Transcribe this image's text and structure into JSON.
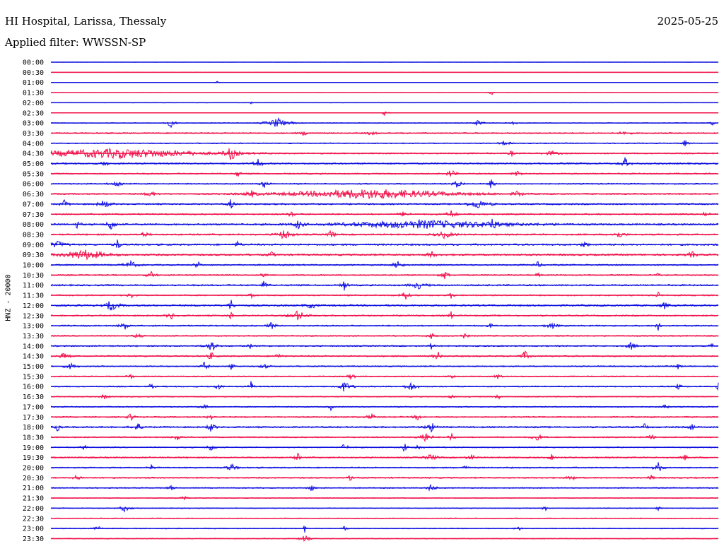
{
  "header": {
    "station": "HI Hospital, Larissa, Thessaly",
    "date": "2025-05-25",
    "filter": "Applied filter: WWSSN-SP"
  },
  "channel_label": "HNZ - 20000",
  "colors": {
    "even_hour": "#1010e0",
    "odd_half_hour": "#f0104a"
  },
  "chart_data": {
    "type": "line",
    "title": "HI Hospital, Larissa, Thessaly",
    "ylabel": "HNZ - 20000",
    "rows": [
      {
        "label": "00:00",
        "noise": 0.3,
        "events": []
      },
      {
        "label": "00:30",
        "noise": 0.4,
        "events": []
      },
      {
        "label": "01:00",
        "noise": 0.3,
        "events": [
          [
            0.25,
            2,
            3
          ]
        ]
      },
      {
        "label": "01:30",
        "noise": 0.3,
        "events": [
          [
            0.66,
            4,
            3
          ]
        ]
      },
      {
        "label": "02:00",
        "noise": 0.4,
        "events": [
          [
            0.3,
            2,
            2
          ]
        ]
      },
      {
        "label": "02:30",
        "noise": 0.4,
        "events": [
          [
            0.5,
            4,
            5
          ]
        ]
      },
      {
        "label": "03:00",
        "noise": 1.0,
        "events": [
          [
            0.18,
            6,
            6
          ],
          [
            0.34,
            7,
            15
          ],
          [
            0.64,
            5,
            6
          ],
          [
            0.69,
            4,
            5
          ],
          [
            0.99,
            5,
            3
          ]
        ]
      },
      {
        "label": "03:30",
        "noise": 1.5,
        "events": [
          [
            0.38,
            3,
            8
          ],
          [
            0.48,
            3,
            6
          ],
          [
            0.86,
            4,
            6
          ]
        ]
      },
      {
        "label": "04:00",
        "noise": 1.2,
        "events": [
          [
            0.68,
            4,
            6
          ],
          [
            0.95,
            5,
            4
          ]
        ]
      },
      {
        "label": "04:30",
        "noise": 1.5,
        "events": [
          [
            0.1,
            5,
            120
          ],
          [
            0.27,
            9,
            8
          ],
          [
            0.69,
            5,
            3
          ],
          [
            0.75,
            3,
            10
          ]
        ]
      },
      {
        "label": "05:00",
        "noise": 1.8,
        "events": [
          [
            0.08,
            5,
            4
          ],
          [
            0.31,
            9,
            5
          ],
          [
            0.86,
            8,
            6
          ]
        ]
      },
      {
        "label": "05:30",
        "noise": 1.5,
        "events": [
          [
            0.28,
            4,
            4
          ],
          [
            0.6,
            7,
            5
          ],
          [
            0.7,
            5,
            6
          ]
        ]
      },
      {
        "label": "06:00",
        "noise": 1.4,
        "events": [
          [
            0.1,
            4,
            10
          ],
          [
            0.32,
            5,
            6
          ],
          [
            0.61,
            7,
            6
          ],
          [
            0.66,
            7,
            4
          ]
        ]
      },
      {
        "label": "06:30",
        "noise": 1.6,
        "events": [
          [
            0.15,
            4,
            8
          ],
          [
            0.3,
            5,
            6
          ],
          [
            0.48,
            5,
            120
          ],
          [
            0.7,
            4,
            6
          ]
        ]
      },
      {
        "label": "07:00",
        "noise": 1.8,
        "events": [
          [
            0.02,
            5,
            6
          ],
          [
            0.08,
            6,
            8
          ],
          [
            0.27,
            8,
            4
          ],
          [
            0.64,
            6,
            15
          ]
        ]
      },
      {
        "label": "07:30",
        "noise": 1.6,
        "events": [
          [
            0.36,
            6,
            4
          ],
          [
            0.53,
            5,
            6
          ],
          [
            0.6,
            6,
            6
          ],
          [
            0.98,
            4,
            6
          ]
        ]
      },
      {
        "label": "08:00",
        "noise": 2.0,
        "events": [
          [
            0.04,
            6,
            4
          ],
          [
            0.09,
            10,
            5
          ],
          [
            0.37,
            6,
            6
          ],
          [
            0.56,
            4,
            120
          ],
          [
            0.66,
            6,
            8
          ]
        ]
      },
      {
        "label": "08:30",
        "noise": 1.8,
        "events": [
          [
            0.14,
            4,
            6
          ],
          [
            0.35,
            7,
            10
          ],
          [
            0.42,
            10,
            4
          ],
          [
            0.59,
            5,
            12
          ],
          [
            0.85,
            5,
            8
          ]
        ]
      },
      {
        "label": "09:00",
        "noise": 2.0,
        "events": [
          [
            0.01,
            4,
            15
          ],
          [
            0.1,
            7,
            5
          ],
          [
            0.28,
            5,
            4
          ],
          [
            0.8,
            6,
            4
          ]
        ]
      },
      {
        "label": "09:30",
        "noise": 2.0,
        "events": [
          [
            0.05,
            5,
            30
          ],
          [
            0.33,
            5,
            4
          ],
          [
            0.57,
            6,
            5
          ],
          [
            0.96,
            5,
            6
          ]
        ]
      },
      {
        "label": "10:00",
        "noise": 1.6,
        "events": [
          [
            0.12,
            5,
            10
          ],
          [
            0.22,
            6,
            4
          ],
          [
            0.52,
            7,
            6
          ],
          [
            0.73,
            4,
            6
          ]
        ]
      },
      {
        "label": "10:30",
        "noise": 1.5,
        "events": [
          [
            0.15,
            5,
            6
          ],
          [
            0.32,
            5,
            4
          ],
          [
            0.59,
            6,
            6
          ],
          [
            0.73,
            4,
            3
          ],
          [
            0.91,
            4,
            3
          ]
        ]
      },
      {
        "label": "11:00",
        "noise": 1.8,
        "events": [
          [
            0.32,
            7,
            5
          ],
          [
            0.44,
            8,
            4
          ],
          [
            0.55,
            5,
            10
          ]
        ]
      },
      {
        "label": "11:30",
        "noise": 1.5,
        "events": [
          [
            0.12,
            4,
            5
          ],
          [
            0.3,
            6,
            3
          ],
          [
            0.53,
            9,
            5
          ],
          [
            0.6,
            5,
            3
          ],
          [
            0.91,
            4,
            3
          ]
        ]
      },
      {
        "label": "12:00",
        "noise": 2.0,
        "events": [
          [
            0.09,
            7,
            10
          ],
          [
            0.27,
            8,
            4
          ],
          [
            0.39,
            4,
            8
          ],
          [
            0.92,
            5,
            5
          ]
        ]
      },
      {
        "label": "12:30",
        "noise": 1.6,
        "events": [
          [
            0.18,
            6,
            5
          ],
          [
            0.27,
            5,
            4
          ],
          [
            0.37,
            7,
            12
          ],
          [
            0.6,
            6,
            4
          ]
        ]
      },
      {
        "label": "13:00",
        "noise": 1.6,
        "events": [
          [
            0.11,
            6,
            6
          ],
          [
            0.33,
            6,
            5
          ],
          [
            0.66,
            4,
            4
          ],
          [
            0.75,
            4,
            8
          ],
          [
            0.91,
            7,
            3
          ]
        ]
      },
      {
        "label": "13:30",
        "noise": 1.4,
        "events": [
          [
            0.13,
            4,
            5
          ],
          [
            0.57,
            4,
            5
          ],
          [
            0.62,
            5,
            4
          ]
        ]
      },
      {
        "label": "14:00",
        "noise": 1.6,
        "events": [
          [
            0.24,
            8,
            8
          ],
          [
            0.3,
            4,
            4
          ],
          [
            0.57,
            5,
            3
          ],
          [
            0.87,
            6,
            6
          ],
          [
            0.99,
            4,
            3
          ]
        ]
      },
      {
        "label": "14:30",
        "noise": 1.6,
        "events": [
          [
            0.02,
            4,
            8
          ],
          [
            0.24,
            5,
            6
          ],
          [
            0.34,
            5,
            4
          ],
          [
            0.58,
            6,
            6
          ],
          [
            0.71,
            7,
            6
          ]
        ]
      },
      {
        "label": "15:00",
        "noise": 1.4,
        "events": [
          [
            0.03,
            4,
            8
          ],
          [
            0.23,
            6,
            5
          ],
          [
            0.27,
            7,
            4
          ],
          [
            0.32,
            4,
            6
          ],
          [
            0.94,
            4,
            4
          ]
        ]
      },
      {
        "label": "15:30",
        "noise": 1.3,
        "events": [
          [
            0.12,
            4,
            5
          ],
          [
            0.45,
            5,
            5
          ],
          [
            0.6,
            5,
            4
          ],
          [
            0.67,
            5,
            4
          ]
        ]
      },
      {
        "label": "16:00",
        "noise": 1.4,
        "events": [
          [
            0.15,
            4,
            4
          ],
          [
            0.25,
            4,
            5
          ],
          [
            0.3,
            9,
            3
          ],
          [
            0.44,
            7,
            10
          ],
          [
            0.54,
            6,
            8
          ],
          [
            0.94,
            6,
            3
          ],
          [
            1.0,
            6,
            3
          ]
        ]
      },
      {
        "label": "16:30",
        "noise": 1.2,
        "events": [
          [
            0.08,
            4,
            5
          ],
          [
            0.6,
            4,
            3
          ],
          [
            0.67,
            6,
            3
          ]
        ]
      },
      {
        "label": "17:00",
        "noise": 1.3,
        "events": [
          [
            0.23,
            4,
            6
          ],
          [
            0.42,
            5,
            3
          ],
          [
            0.92,
            5,
            4
          ]
        ]
      },
      {
        "label": "17:30",
        "noise": 1.5,
        "events": [
          [
            0.12,
            5,
            5
          ],
          [
            0.24,
            5,
            4
          ],
          [
            0.48,
            5,
            6
          ],
          [
            0.55,
            4,
            6
          ]
        ]
      },
      {
        "label": "18:00",
        "noise": 1.8,
        "events": [
          [
            0.01,
            5,
            5
          ],
          [
            0.13,
            5,
            8
          ],
          [
            0.24,
            8,
            5
          ],
          [
            0.57,
            6,
            8
          ],
          [
            0.89,
            6,
            3
          ],
          [
            0.96,
            7,
            3
          ]
        ]
      },
      {
        "label": "18:30",
        "noise": 1.5,
        "events": [
          [
            0.19,
            4,
            6
          ],
          [
            0.56,
            8,
            8
          ],
          [
            0.6,
            6,
            4
          ],
          [
            0.73,
            4,
            8
          ],
          [
            0.9,
            4,
            5
          ]
        ]
      },
      {
        "label": "19:00",
        "noise": 1.3,
        "events": [
          [
            0.05,
            4,
            4
          ],
          [
            0.24,
            6,
            5
          ],
          [
            0.44,
            8,
            4
          ],
          [
            0.53,
            8,
            3
          ],
          [
            0.55,
            4,
            6
          ]
        ]
      },
      {
        "label": "19:30",
        "noise": 1.6,
        "events": [
          [
            0.37,
            6,
            4
          ],
          [
            0.57,
            5,
            8
          ],
          [
            0.63,
            4,
            6
          ],
          [
            0.75,
            4,
            4
          ],
          [
            0.95,
            4,
            4
          ]
        ]
      },
      {
        "label": "20:00",
        "noise": 1.5,
        "events": [
          [
            0.15,
            4,
            4
          ],
          [
            0.27,
            5,
            8
          ],
          [
            0.62,
            4,
            4
          ],
          [
            0.91,
            7,
            6
          ]
        ]
      },
      {
        "label": "20:30",
        "noise": 1.5,
        "events": [
          [
            0.04,
            5,
            5
          ],
          [
            0.45,
            4,
            6
          ],
          [
            0.78,
            4,
            6
          ],
          [
            0.9,
            4,
            4
          ]
        ]
      },
      {
        "label": "21:00",
        "noise": 1.3,
        "events": [
          [
            0.18,
            4,
            4
          ],
          [
            0.39,
            5,
            5
          ],
          [
            0.57,
            6,
            6
          ]
        ]
      },
      {
        "label": "21:30",
        "noise": 1.0,
        "events": [
          [
            0.2,
            3,
            5
          ]
        ]
      },
      {
        "label": "22:00",
        "noise": 1.0,
        "events": [
          [
            0.11,
            5,
            8
          ],
          [
            0.74,
            5,
            3
          ],
          [
            0.91,
            4,
            3
          ]
        ]
      },
      {
        "label": "22:30",
        "noise": 1.0,
        "events": []
      },
      {
        "label": "23:00",
        "noise": 1.1,
        "events": [
          [
            0.07,
            4,
            5
          ],
          [
            0.38,
            6,
            3
          ],
          [
            0.44,
            6,
            3
          ],
          [
            0.7,
            4,
            4
          ]
        ]
      },
      {
        "label": "23:30",
        "noise": 1.0,
        "events": [
          [
            0.38,
            6,
            6
          ]
        ]
      }
    ]
  }
}
